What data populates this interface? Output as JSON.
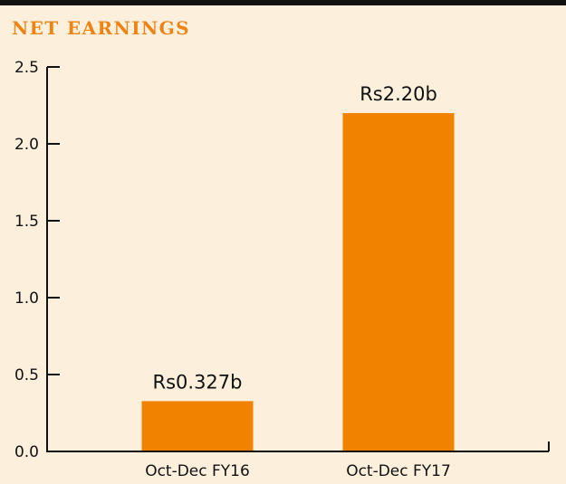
{
  "chart_data": {
    "type": "bar",
    "title": "NET EARNINGS",
    "xlabel": "",
    "ylabel": "",
    "categories": [
      "Oct-Dec FY16",
      "Oct-Dec FY17"
    ],
    "values": [
      0.327,
      2.2
    ],
    "data_labels": [
      "Rs0.327b",
      "Rs2.20b"
    ],
    "ylim": [
      0,
      2.5
    ],
    "yticks": [
      0.0,
      0.5,
      1.0,
      1.5,
      2.0,
      2.5
    ],
    "ytick_labels": [
      "0.0",
      "0.5",
      "1.0",
      "1.5",
      "2.0",
      "2.5"
    ],
    "grid": false,
    "legend": "none",
    "colors": {
      "bar": "#f08200",
      "title": "#ee8313",
      "axis": "#111111",
      "background": "#fcf0dc"
    }
  }
}
